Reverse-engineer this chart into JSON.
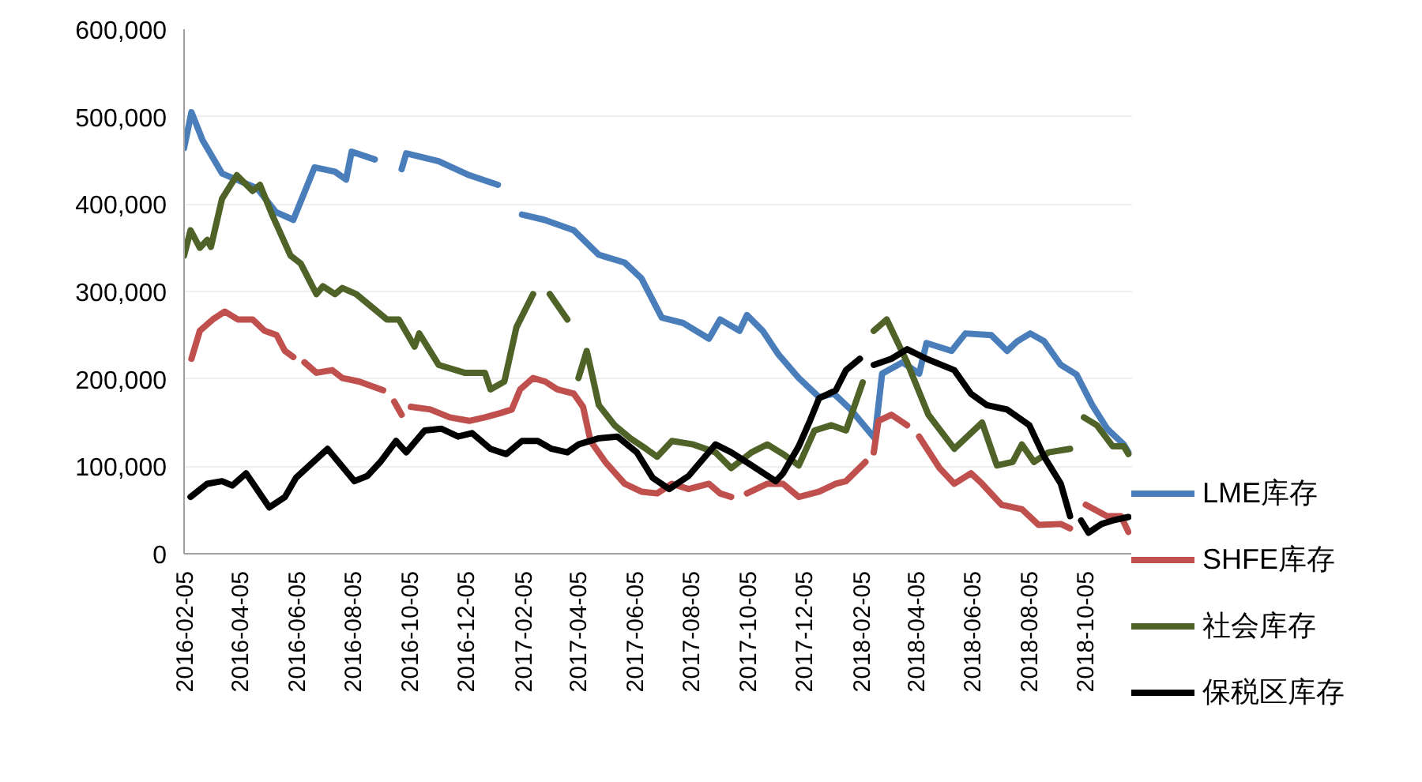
{
  "chart_data": {
    "type": "line",
    "legend": "right",
    "grid": "y",
    "line_style": "solid",
    "marker": "none",
    "xlim": [
      "2016-02-05",
      "2018-11-25"
    ],
    "ylim": [
      0,
      600000
    ],
    "xticks": [
      "2016-02-05",
      "2016-04-05",
      "2016-06-05",
      "2016-08-05",
      "2016-10-05",
      "2016-12-05",
      "2017-02-05",
      "2017-04-05",
      "2017-06-05",
      "2017-08-05",
      "2017-10-05",
      "2017-12-05",
      "2018-02-05",
      "2018-04-05",
      "2018-06-05",
      "2018-08-05",
      "2018-10-05"
    ],
    "yticks": [
      0,
      {
        "value": 100000,
        "label": "100,000"
      },
      {
        "value": 200000,
        "label": "200,000"
      },
      {
        "value": 300000,
        "label": "300,000"
      },
      {
        "value": 400000,
        "label": "400,000"
      },
      {
        "value": 500000,
        "label": "500,000"
      },
      {
        "value": 600000,
        "label": "600,000"
      }
    ],
    "series": [
      {
        "name": "LME库存",
        "color": "#4a7ebb",
        "x": [
          "2016-02-05",
          "2016-02-13",
          "2016-02-25",
          "2016-03-17",
          "2016-04-24",
          "2016-05-14",
          "2016-06-02",
          "2016-06-25",
          "2016-07-17",
          "2016-07-29",
          "2016-08-04",
          "2016-08-29",
          "2016-09-05",
          "2016-09-27",
          "2016-10-02",
          "2016-11-06",
          "2016-12-09",
          "2017-01-09",
          "2017-01-16",
          "2017-02-04",
          "2017-02-28",
          "2017-04-01",
          "2017-04-28",
          "2017-05-26",
          "2017-06-13",
          "2017-07-05",
          "2017-07-28",
          "2017-08-25",
          "2017-09-06",
          "2017-09-27",
          "2017-10-05",
          "2017-10-22",
          "2017-11-08",
          "2017-11-30",
          "2017-12-22",
          "2018-01-07",
          "2018-01-25",
          "2018-02-20",
          "2018-02-28",
          "2018-03-22",
          "2018-04-09",
          "2018-04-17",
          "2018-05-14",
          "2018-05-29",
          "2018-06-26",
          "2018-07-13",
          "2018-07-24",
          "2018-08-07",
          "2018-08-22",
          "2018-09-09",
          "2018-09-26",
          "2018-10-13",
          "2018-10-29",
          "2018-11-16",
          "2018-11-21"
        ],
        "values": [
          464000,
          505000,
          473000,
          435000,
          418000,
          391000,
          382000,
          442000,
          437000,
          428000,
          460000,
          451000,
          null,
          440000,
          458000,
          449000,
          433000,
          422000,
          null,
          388000,
          382000,
          370000,
          342000,
          333000,
          315000,
          270000,
          264000,
          246000,
          268000,
          255000,
          273000,
          255000,
          228000,
          201000,
          179000,
          183000,
          165000,
          132000,
          206000,
          219000,
          206000,
          241000,
          232000,
          252000,
          250000,
          232000,
          243000,
          252000,
          243000,
          216000,
          205000,
          170000,
          143000,
          125000,
          116000
        ]
      },
      {
        "name": "SHFE库存",
        "color": "#c0504d",
        "x": [
          "2016-02-13",
          "2016-02-22",
          "2016-03-07",
          "2016-03-20",
          "2016-04-03",
          "2016-04-19",
          "2016-05-02",
          "2016-05-15",
          "2016-05-24",
          "2016-06-02",
          "2016-06-06",
          "2016-06-14",
          "2016-06-27",
          "2016-07-14",
          "2016-07-25",
          "2016-08-12",
          "2016-09-07",
          "2016-09-10",
          "2016-09-19",
          "2016-09-27",
          "2016-10-02",
          "2016-10-07",
          "2016-10-28",
          "2016-11-18",
          "2016-12-09",
          "2016-12-26",
          "2017-01-12",
          "2017-01-24",
          "2017-02-02",
          "2017-02-16",
          "2017-03-01",
          "2017-03-14",
          "2017-04-01",
          "2017-04-11",
          "2017-04-19",
          "2017-05-05",
          "2017-05-26",
          "2017-06-13",
          "2017-06-30",
          "2017-07-16",
          "2017-08-03",
          "2017-08-25",
          "2017-09-06",
          "2017-09-18",
          "2017-09-25",
          "2017-10-05",
          "2017-10-27",
          "2017-11-13",
          "2017-11-30",
          "2017-12-22",
          "2018-01-09",
          "2018-01-20",
          "2018-02-10",
          "2018-02-14",
          "2018-02-19",
          "2018-02-24",
          "2018-03-10",
          "2018-03-27",
          "2018-03-31",
          "2018-04-09",
          "2018-05-01",
          "2018-05-17",
          "2018-06-04",
          "2018-06-16",
          "2018-07-07",
          "2018-07-29",
          "2018-08-16",
          "2018-09-09",
          "2018-09-19",
          "2018-09-25",
          "2018-10-06",
          "2018-10-29",
          "2018-11-13",
          "2018-11-21"
        ],
        "values": [
          223000,
          255000,
          268000,
          277000,
          268000,
          268000,
          255000,
          250000,
          232000,
          225000,
          null,
          219000,
          207000,
          210000,
          201000,
          197000,
          187000,
          null,
          174000,
          159000,
          null,
          168000,
          165000,
          156000,
          152000,
          156000,
          161000,
          165000,
          188000,
          201000,
          197000,
          188000,
          183000,
          168000,
          129000,
          105000,
          80000,
          71000,
          69000,
          80000,
          74000,
          80000,
          69000,
          65000,
          null,
          69000,
          80000,
          80000,
          65000,
          71000,
          80000,
          83000,
          105000,
          null,
          116000,
          152000,
          159000,
          147000,
          null,
          134000,
          98000,
          80000,
          92000,
          80000,
          56000,
          51000,
          33000,
          34000,
          29000,
          null,
          56000,
          43000,
          43000,
          25000
        ]
      },
      {
        "name": "社会库存",
        "color": "#4f6228",
        "x": [
          "2016-02-05",
          "2016-02-12",
          "2016-02-22",
          "2016-03-01",
          "2016-03-05",
          "2016-03-17",
          "2016-04-02",
          "2016-04-19",
          "2016-04-27",
          "2016-05-10",
          "2016-05-30",
          "2016-06-10",
          "2016-06-27",
          "2016-07-04",
          "2016-07-17",
          "2016-07-25",
          "2016-08-09",
          "2016-09-11",
          "2016-09-24",
          "2016-10-11",
          "2016-10-16",
          "2016-11-06",
          "2016-12-04",
          "2016-12-26",
          "2017-01-01",
          "2017-01-16",
          "2017-01-29",
          "2017-02-16",
          "2017-02-23",
          "2017-03-06",
          "2017-03-25",
          "2017-04-01",
          "2017-04-06",
          "2017-04-15",
          "2017-04-28",
          "2017-05-15",
          "2017-06-01",
          "2017-06-18",
          "2017-06-30",
          "2017-07-16",
          "2017-08-08",
          "2017-09-01",
          "2017-09-18",
          "2017-10-10",
          "2017-10-27",
          "2017-11-13",
          "2017-11-30",
          "2017-12-17",
          "2018-01-04",
          "2018-01-20",
          "2018-02-07",
          "2018-02-12",
          "2018-02-19",
          "2018-03-05",
          "2018-03-27",
          "2018-04-19",
          "2018-05-17",
          "2018-06-16",
          "2018-07-02",
          "2018-07-19",
          "2018-07-29",
          "2018-08-11",
          "2018-08-27",
          "2018-09-19",
          "2018-09-25",
          "2018-10-04",
          "2018-10-18",
          "2018-11-04",
          "2018-11-16",
          "2018-11-21"
        ],
        "values": [
          341000,
          370000,
          350000,
          359000,
          351000,
          406000,
          433000,
          415000,
          422000,
          388000,
          341000,
          332000,
          297000,
          306000,
          297000,
          304000,
          297000,
          268000,
          268000,
          237000,
          252000,
          216000,
          207000,
          207000,
          188000,
          197000,
          259000,
          297000,
          null,
          297000,
          268000,
          null,
          201000,
          232000,
          170000,
          147000,
          132000,
          120000,
          111000,
          129000,
          125000,
          116000,
          98000,
          116000,
          125000,
          114000,
          101000,
          141000,
          147000,
          141000,
          196000,
          null,
          255000,
          268000,
          219000,
          159000,
          120000,
          150000,
          101000,
          105000,
          125000,
          105000,
          116000,
          120000,
          null,
          156000,
          147000,
          123000,
          123000,
          114000
        ]
      },
      {
        "name": "保税区库存",
        "color": "#000000",
        "x": [
          "2016-02-12",
          "2016-03-01",
          "2016-03-17",
          "2016-03-28",
          "2016-04-12",
          "2016-05-07",
          "2016-05-24",
          "2016-06-05",
          "2016-07-09",
          "2016-08-07",
          "2016-08-21",
          "2016-09-04",
          "2016-09-21",
          "2016-10-02",
          "2016-10-22",
          "2016-11-09",
          "2016-11-27",
          "2016-12-12",
          "2017-01-01",
          "2017-01-18",
          "2017-02-04",
          "2017-02-21",
          "2017-03-08",
          "2017-03-25",
          "2017-04-06",
          "2017-04-28",
          "2017-05-18",
          "2017-06-08",
          "2017-06-25",
          "2017-07-13",
          "2017-08-03",
          "2017-09-01",
          "2017-09-18",
          "2017-10-10",
          "2017-11-05",
          "2017-11-13",
          "2017-11-30",
          "2017-12-12",
          "2017-12-22",
          "2018-01-09",
          "2018-01-20",
          "2018-02-04",
          "2018-02-08",
          "2018-02-19",
          "2018-03-10",
          "2018-03-27",
          "2018-04-17",
          "2018-05-17",
          "2018-06-04",
          "2018-06-21",
          "2018-07-13",
          "2018-08-06",
          "2018-08-22",
          "2018-09-09",
          "2018-09-19",
          "2018-09-25",
          "2018-10-01",
          "2018-10-09",
          "2018-10-23",
          "2018-11-04",
          "2018-11-21"
        ],
        "values": [
          65000,
          80000,
          83000,
          78000,
          92000,
          53000,
          65000,
          87000,
          120000,
          83000,
          89000,
          105000,
          129000,
          116000,
          141000,
          143000,
          134000,
          138000,
          120000,
          114000,
          129000,
          129000,
          120000,
          116000,
          125000,
          132000,
          134000,
          116000,
          87000,
          74000,
          89000,
          125000,
          116000,
          101000,
          83000,
          92000,
          123000,
          152000,
          178000,
          187000,
          210000,
          223000,
          null,
          216000,
          223000,
          234000,
          223000,
          210000,
          183000,
          170000,
          165000,
          147000,
          111000,
          80000,
          43000,
          null,
          38000,
          24000,
          34000,
          38000,
          42000
        ]
      }
    ]
  }
}
